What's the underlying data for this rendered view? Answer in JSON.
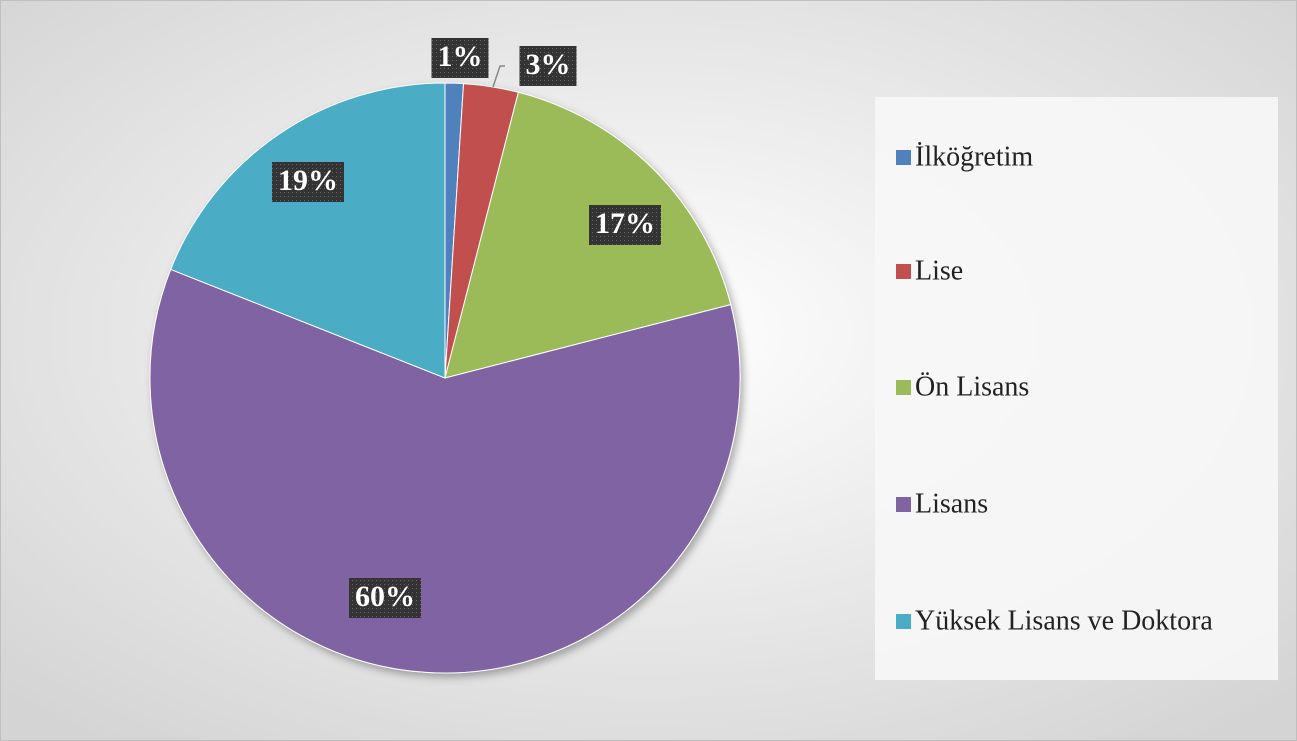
{
  "chart_data": {
    "type": "pie",
    "categories": [
      "İlköğretim",
      "Lise",
      "Ön Lisans",
      "Lisans",
      "Yüksek Lisans ve Doktora"
    ],
    "values": [
      1,
      3,
      17,
      60,
      19
    ],
    "value_labels": [
      "1%",
      "3%",
      "17%",
      "60%",
      "19%"
    ],
    "colors": [
      "#4f81bd",
      "#c0504d",
      "#9bbb59",
      "#8064a2",
      "#4bacc6"
    ],
    "legend": "right"
  }
}
